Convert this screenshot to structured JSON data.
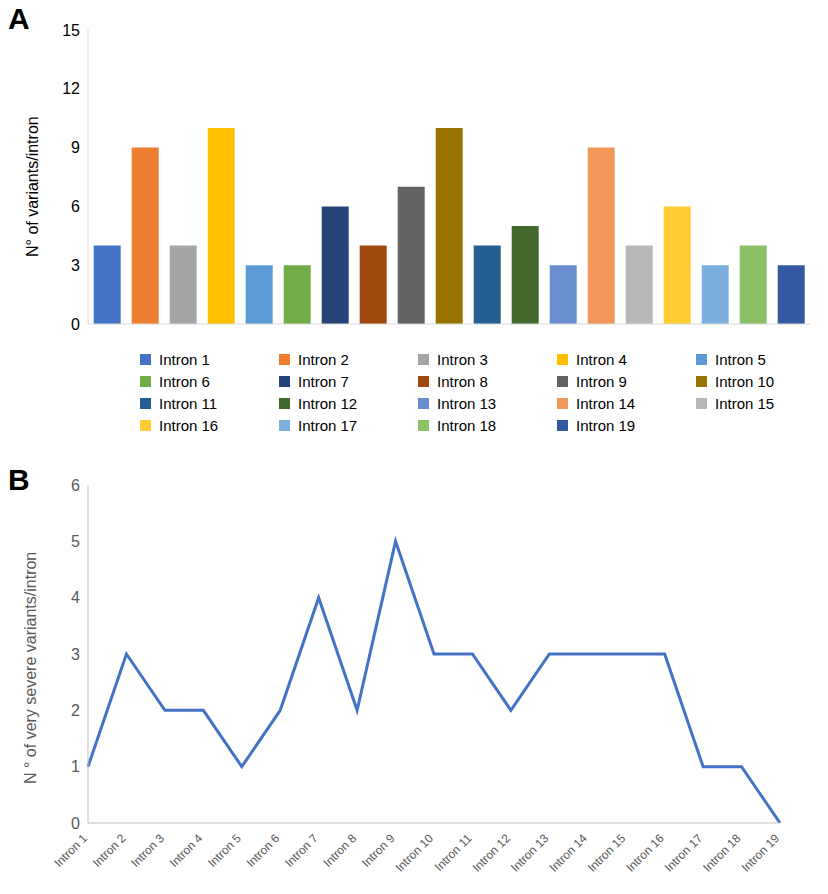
{
  "chart_data": [
    {
      "type": "bar",
      "title": "A",
      "y_label": "N° of variants/intron",
      "categories": [
        "Intron 1",
        "Intron 2",
        "Intron 3",
        "Intron 4",
        "Intron 5",
        "Intron 6",
        "Intron 7",
        "Intron 8",
        "Intron 9",
        "Intron 10",
        "Intron 11",
        "Intron 12",
        "Intron 13",
        "Intron 14",
        "Intron 15",
        "Intron 16",
        "Intron 17",
        "Intron 18",
        "Intron 19"
      ],
      "values": [
        4,
        9,
        4,
        10,
        3,
        3,
        6,
        4,
        7,
        10,
        4,
        5,
        3,
        9,
        4,
        6,
        3,
        4,
        3
      ],
      "colors": [
        "#4472c4",
        "#ed7d31",
        "#a5a5a5",
        "#ffc000",
        "#5b9bd5",
        "#70ad47",
        "#264478",
        "#9e480e",
        "#636363",
        "#997300",
        "#255e91",
        "#43682b",
        "#698ed0",
        "#f1975a",
        "#b7b7b7",
        "#ffcd33",
        "#7cafdd",
        "#8cc168",
        "#335aa1"
      ],
      "ylim": [
        0,
        15
      ],
      "yticks": [
        0,
        3,
        6,
        9,
        12,
        15
      ],
      "grid": false,
      "legend": "bottom",
      "tick_labels": "y"
    },
    {
      "type": "line",
      "title": "B",
      "y_label": "N ° of very severe variants/intron",
      "categories": [
        "Intron 1",
        "Intron 2",
        "Intron 3",
        "Intron 4",
        "Intron 5",
        "Intron 6",
        "Intron 7",
        "Intron 8",
        "Intron 9",
        "Intron 10",
        "Intron 11",
        "Intron 12",
        "Intron 13",
        "Intron 14",
        "Intron 15",
        "Intron 16",
        "Intron 17",
        "Intron 18",
        "Intron 19"
      ],
      "values": [
        1,
        3,
        2,
        2,
        1,
        2,
        4,
        2,
        5,
        3,
        3,
        2,
        3,
        3,
        3,
        3,
        1,
        1,
        0
      ],
      "color": "#4472c4",
      "marker": "none",
      "ylim": [
        0,
        6
      ],
      "yticks": [
        0,
        1,
        2,
        3,
        4,
        5,
        6
      ],
      "grid": false
    }
  ]
}
